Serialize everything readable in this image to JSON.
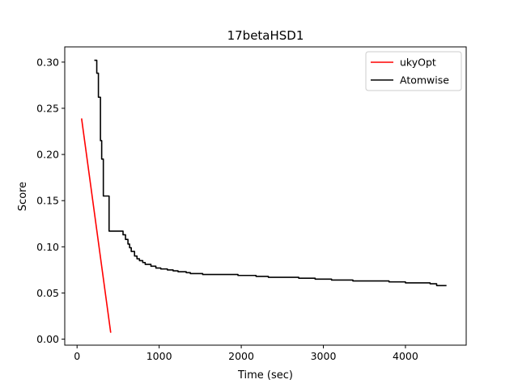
{
  "chart_data": {
    "type": "line",
    "title": "17betaHSD1",
    "xlabel": "Time (sec)",
    "ylabel": "Score",
    "xlim": [
      -150,
      4740
    ],
    "ylim": [
      -0.0065,
      0.3165
    ],
    "xticks": [
      0,
      1000,
      2000,
      3000,
      4000
    ],
    "xtick_labels": [
      "0",
      "1000",
      "2000",
      "3000",
      "4000"
    ],
    "yticks": [
      0.0,
      0.05,
      0.1,
      0.15,
      0.2,
      0.25,
      0.3
    ],
    "ytick_labels": [
      "0.00",
      "0.05",
      "0.10",
      "0.15",
      "0.20",
      "0.25",
      "0.30"
    ],
    "grid": false,
    "legend": "top-right",
    "series": [
      {
        "name": "ukyOpt",
        "color": "#ff0000",
        "step": false,
        "points": [
          [
            55,
            0.239
          ],
          [
            410,
            0.007
          ]
        ]
      },
      {
        "name": "Atomwise",
        "color": "#000000",
        "step": true,
        "points": [
          [
            210,
            0.302
          ],
          [
            240,
            0.288
          ],
          [
            260,
            0.262
          ],
          [
            285,
            0.215
          ],
          [
            300,
            0.195
          ],
          [
            320,
            0.155
          ],
          [
            390,
            0.117
          ],
          [
            540,
            0.117
          ],
          [
            560,
            0.113
          ],
          [
            590,
            0.108
          ],
          [
            620,
            0.103
          ],
          [
            640,
            0.099
          ],
          [
            660,
            0.095
          ],
          [
            700,
            0.09
          ],
          [
            730,
            0.087
          ],
          [
            760,
            0.085
          ],
          [
            800,
            0.083
          ],
          [
            830,
            0.081
          ],
          [
            900,
            0.079
          ],
          [
            960,
            0.077
          ],
          [
            1020,
            0.076
          ],
          [
            1100,
            0.075
          ],
          [
            1170,
            0.074
          ],
          [
            1230,
            0.073
          ],
          [
            1330,
            0.072
          ],
          [
            1380,
            0.071
          ],
          [
            1530,
            0.07
          ],
          [
            1800,
            0.07
          ],
          [
            1960,
            0.069
          ],
          [
            2180,
            0.068
          ],
          [
            2330,
            0.067
          ],
          [
            2700,
            0.066
          ],
          [
            2900,
            0.065
          ],
          [
            3100,
            0.064
          ],
          [
            3360,
            0.063
          ],
          [
            3800,
            0.062
          ],
          [
            4000,
            0.061
          ],
          [
            4300,
            0.06
          ],
          [
            4380,
            0.058
          ],
          [
            4500,
            0.058
          ]
        ]
      }
    ]
  }
}
